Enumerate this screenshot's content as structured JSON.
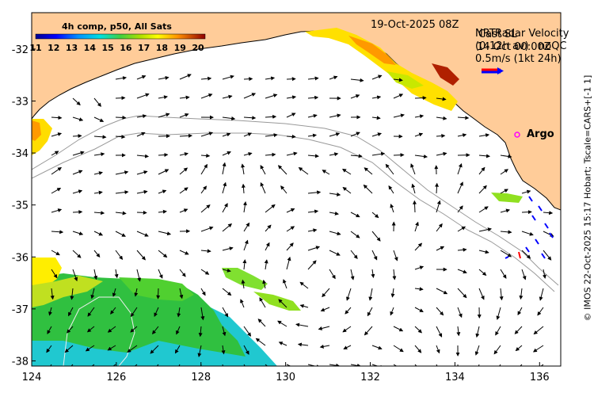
{
  "header": {
    "date_label": "19-Oct-2025 08Z",
    "colorbar_title": "4h comp, p50, All Sats",
    "colorbar_ticks": [
      "11",
      "12",
      "13",
      "14",
      "15",
      "16",
      "17",
      "18",
      "19",
      "20"
    ],
    "colorbar_range": [
      11,
      20
    ]
  },
  "legend": {
    "overlap_line1_a": "NRT",
    "overlap_line1_b": "Radar Velocity",
    "overlap_line1_c": "Cast SL",
    "overlap_line2_a": "(0-12h av)",
    "overlap_line2_b": "14 Oct 00:00Z",
    "overlap_line2_c": "noQC",
    "scale_label": "0.5m/s (1kt 24h)",
    "arrow_colors": [
      "#ff0000",
      "#0000ff"
    ]
  },
  "map_data": {
    "x_ticks": [
      "124",
      "126",
      "128",
      "130",
      "132",
      "134",
      "136"
    ],
    "y_ticks": [
      "-32",
      "-33",
      "-34",
      "-35",
      "-36",
      "-37",
      "-38"
    ],
    "lon_range": [
      124,
      136.5
    ],
    "lat_range": [
      -38.1,
      -31.3
    ]
  },
  "argo": {
    "label": "Argo",
    "marker_color": "#ff00ff"
  },
  "credit": "© IMOS 22-Oct-2025 15:17 Hobart; Tscale=CARS+[-1 1]",
  "colors": {
    "land": "#ffcc99",
    "ocean": "#ffffff",
    "coast": "#000000",
    "isobath": "#999999"
  }
}
